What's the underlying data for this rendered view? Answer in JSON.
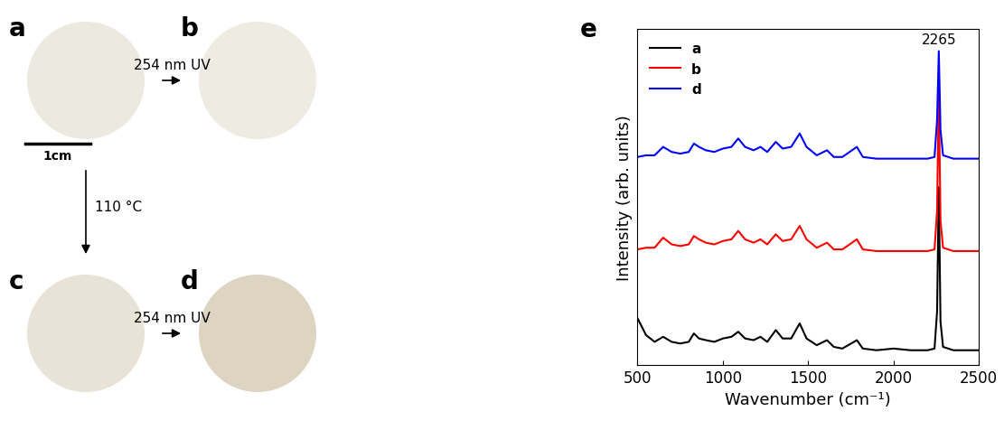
{
  "panel_labels": [
    "a",
    "b",
    "c",
    "d",
    "e"
  ],
  "photo_arrows": [
    {
      "from": "a",
      "to": "b",
      "label": "254 nm UV"
    },
    {
      "from": "a",
      "to": "c",
      "label": "110 °C"
    },
    {
      "from": "c",
      "to": "d",
      "label": "254 nm UV"
    }
  ],
  "scale_bar": "1cm",
  "chart_data": {
    "type": "line",
    "x_label": "Wavenumber (cm⁻¹)",
    "y_label": "Intensity (arb. units)",
    "xlim": [
      500,
      2500
    ],
    "xticks": [
      500,
      1000,
      1500,
      2000,
      2500
    ],
    "ylim": [
      0,
      10
    ],
    "tick_labels": "x",
    "legend": "upper left",
    "annotations": [
      {
        "text": "2265",
        "x": 2265
      }
    ],
    "x": [
      500,
      550,
      600,
      650,
      700,
      750,
      800,
      830,
      860,
      900,
      950,
      1000,
      1050,
      1090,
      1130,
      1180,
      1220,
      1260,
      1310,
      1350,
      1400,
      1450,
      1490,
      1550,
      1610,
      1650,
      1700,
      1785,
      1820,
      1900,
      2000,
      2100,
      2200,
      2240,
      2255,
      2265,
      2275,
      2290,
      2350,
      2450,
      2500
    ],
    "series": [
      {
        "name": "a",
        "color": "#000000",
        "values": [
          1.4,
          0.9,
          0.7,
          0.85,
          0.7,
          0.65,
          0.7,
          0.95,
          0.8,
          0.75,
          0.7,
          0.8,
          0.85,
          1.0,
          0.8,
          0.75,
          0.85,
          0.7,
          1.05,
          0.8,
          0.8,
          1.25,
          0.8,
          0.6,
          0.75,
          0.55,
          0.5,
          0.75,
          0.5,
          0.45,
          0.5,
          0.45,
          0.45,
          0.5,
          1.6,
          5.3,
          1.3,
          0.55,
          0.45,
          0.45,
          0.45
        ]
      },
      {
        "name": "b",
        "color": "#ff0000",
        "values": [
          3.45,
          3.5,
          3.5,
          3.8,
          3.6,
          3.55,
          3.6,
          3.85,
          3.75,
          3.65,
          3.6,
          3.7,
          3.75,
          4.0,
          3.75,
          3.65,
          3.75,
          3.6,
          3.9,
          3.7,
          3.75,
          4.15,
          3.75,
          3.5,
          3.65,
          3.45,
          3.45,
          3.75,
          3.45,
          3.4,
          3.4,
          3.4,
          3.4,
          3.45,
          4.6,
          8.2,
          4.3,
          3.5,
          3.4,
          3.4,
          3.4
        ]
      },
      {
        "name": "d",
        "color": "#0000ff",
        "values": [
          6.2,
          6.25,
          6.25,
          6.5,
          6.35,
          6.3,
          6.35,
          6.6,
          6.5,
          6.4,
          6.35,
          6.45,
          6.5,
          6.75,
          6.5,
          6.4,
          6.5,
          6.35,
          6.65,
          6.45,
          6.5,
          6.9,
          6.5,
          6.25,
          6.4,
          6.2,
          6.2,
          6.5,
          6.2,
          6.15,
          6.15,
          6.15,
          6.15,
          6.2,
          7.3,
          9.35,
          7.0,
          6.25,
          6.15,
          6.15,
          6.15
        ]
      }
    ]
  }
}
